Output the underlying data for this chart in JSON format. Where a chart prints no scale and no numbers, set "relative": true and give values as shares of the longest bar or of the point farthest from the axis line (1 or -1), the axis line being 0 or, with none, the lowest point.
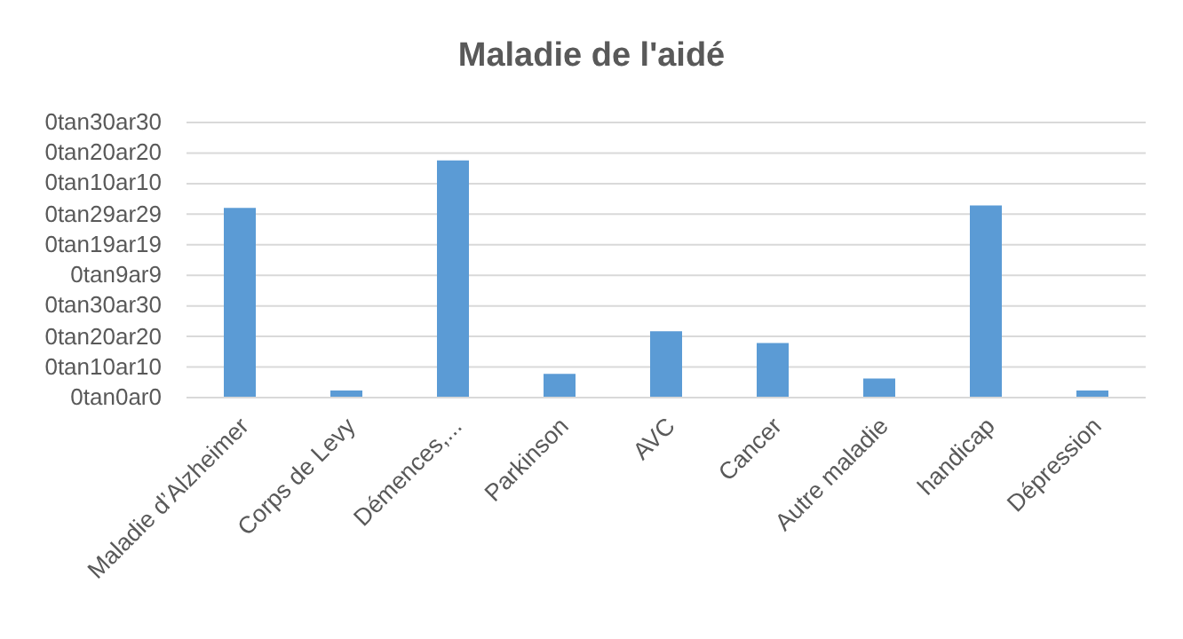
{
  "chart_data": {
    "type": "bar",
    "title": "Maladie de l'aidé",
    "categories": [
      "Maladie d’Alzheimer",
      "Corps de Levy",
      "Démences,...",
      "Parkinson",
      "AVC",
      "Cancer",
      "Autre maladie",
      "handicap",
      "Dépression"
    ],
    "values": [
      0.8,
      0.03,
      1,
      0.1,
      0.28,
      0.23,
      0.08,
      0.81,
      0.03
    ],
    "relative": true,
    "color": "#5b9bd5",
    "annotations": [
      "0tan30ar30",
      "0tan20ar20",
      "0tan10ar10",
      "0tan29ar29",
      "0tan19ar19",
      "0tan9ar9",
      "0tan30ar30",
      "0tan20ar20",
      "0tan10ar10",
      "0tan0ar0"
    ],
    "grid": "y"
  }
}
